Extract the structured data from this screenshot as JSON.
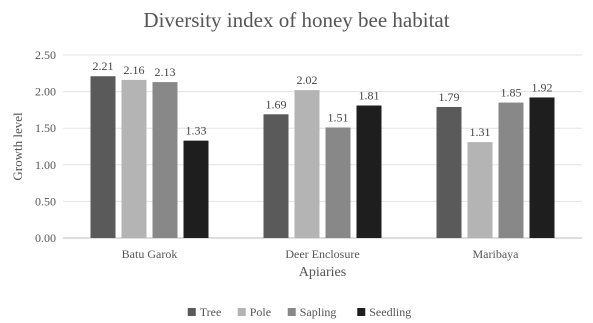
{
  "chart_data": {
    "type": "bar",
    "title": "Diversity index of honey bee habitat",
    "xlabel": "Apiaries",
    "ylabel": "Growth level",
    "ylim": [
      0,
      2.5
    ],
    "yticks": [
      "0.00",
      "0.50",
      "1.00",
      "1.50",
      "2.00",
      "2.50"
    ],
    "categories": [
      "Batu Garok",
      "Deer Enclosure",
      "Maribaya"
    ],
    "series": [
      {
        "name": "Tree",
        "color": "#5a5a5a",
        "values": [
          2.21,
          1.69,
          1.79
        ]
      },
      {
        "name": "Pole",
        "color": "#b4b4b4",
        "values": [
          2.16,
          2.02,
          1.31
        ]
      },
      {
        "name": "Sapling",
        "color": "#888888",
        "values": [
          2.13,
          1.51,
          1.85
        ]
      },
      {
        "name": "Seedling",
        "color": "#1e1e1e",
        "values": [
          1.33,
          1.81,
          1.92
        ]
      }
    ],
    "data_labels": [
      [
        "2.21",
        "1.69",
        "1.79"
      ],
      [
        "2.16",
        "2.02",
        "1.31"
      ],
      [
        "2.13",
        "1.51",
        "1.85"
      ],
      [
        "1.33",
        "1.81",
        "1.92"
      ]
    ],
    "grid": true,
    "legend": "bottom"
  }
}
